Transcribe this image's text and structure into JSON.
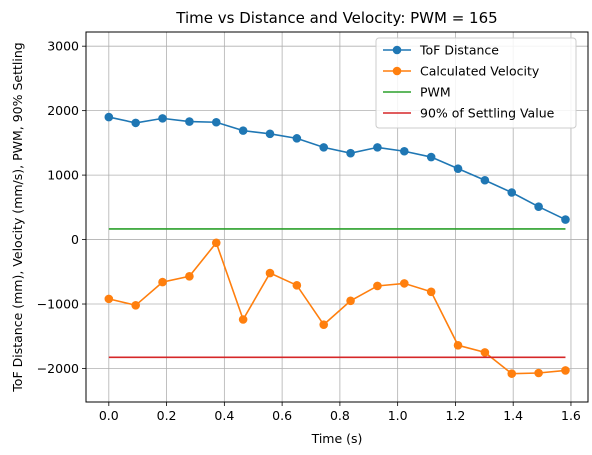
{
  "chart_data": {
    "type": "line",
    "title": "Time vs Distance and Velocity: PWM = 165",
    "xlabel": "Time (s)",
    "ylabel": "ToF Distance (mm), Velocity (mm/s), PWM, 90% Settling",
    "xlim": [
      -0.079,
      1.659
    ],
    "ylim": [
      -2520,
      3220
    ],
    "xticks": [
      0.0,
      0.2,
      0.4,
      0.6,
      0.8,
      1.0,
      1.2,
      1.4,
      1.6
    ],
    "xtick_labels": [
      "0.0",
      "0.2",
      "0.4",
      "0.6",
      "0.8",
      "1.0",
      "1.2",
      "1.4",
      "1.6"
    ],
    "yticks": [
      -2000,
      -1000,
      0,
      1000,
      2000,
      3000
    ],
    "ytick_labels": [
      "−2000",
      "−1000",
      "0",
      "1000",
      "2000",
      "3000"
    ],
    "grid": true,
    "legend_position": "top-right",
    "series": [
      {
        "name": "ToF Distance",
        "color": "#1f77b4",
        "marker": true,
        "x": [
          0.0,
          0.093,
          0.186,
          0.279,
          0.372,
          0.465,
          0.558,
          0.651,
          0.744,
          0.837,
          0.93,
          1.023,
          1.116,
          1.209,
          1.302,
          1.395,
          1.488,
          1.581
        ],
        "y": [
          1900,
          1810,
          1880,
          1830,
          1820,
          1690,
          1640,
          1570,
          1430,
          1340,
          1430,
          1370,
          1280,
          1100,
          920,
          730,
          510,
          310
        ]
      },
      {
        "name": "Calculated Velocity",
        "color": "#ff7f0e",
        "marker": true,
        "x": [
          0.0,
          0.093,
          0.186,
          0.279,
          0.372,
          0.465,
          0.558,
          0.651,
          0.744,
          0.837,
          0.93,
          1.023,
          1.116,
          1.209,
          1.302,
          1.395,
          1.488,
          1.581
        ],
        "y": [
          -920,
          -1020,
          -660,
          -570,
          -50,
          -1240,
          -520,
          -710,
          -1320,
          -950,
          -720,
          -680,
          -810,
          -1640,
          -1750,
          -2080,
          -2070,
          -2030
        ]
      },
      {
        "name": "PWM",
        "color": "#2ca02c",
        "marker": false,
        "x": [
          0.0,
          1.581
        ],
        "y": [
          165,
          165
        ]
      },
      {
        "name": "90% of Settling Value",
        "color": "#d62728",
        "marker": false,
        "x": [
          0.0,
          1.581
        ],
        "y": [
          -1827,
          -1827
        ]
      }
    ]
  }
}
